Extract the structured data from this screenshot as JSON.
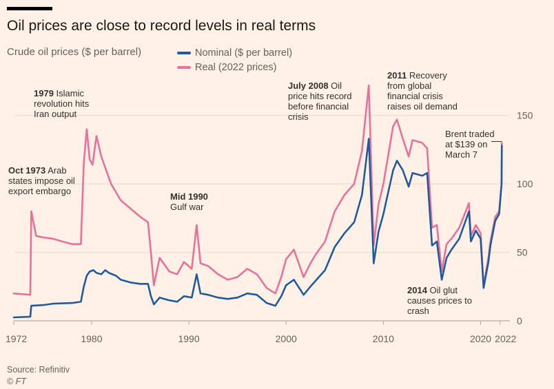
{
  "header": {
    "title": "Oil prices are close to record levels in real terms",
    "subtitle": "Crude oil prices ($ per barrel)"
  },
  "legend": {
    "nominal": "Nominal ($ per barrel)",
    "real": "Real (2022 prices)"
  },
  "annotations": {
    "a1973": [
      "Oct 1973 Arab",
      "states impose oil",
      "export embargo"
    ],
    "a1979": [
      "1979 Islamic",
      "revolution hits",
      "Iran output"
    ],
    "a1990": [
      "Mid 1990",
      "Gulf war"
    ],
    "a2008": [
      "July 2008 Oil",
      "price hits record",
      "before financial",
      "crisis"
    ],
    "a2011": [
      "2011 Recovery",
      "from global",
      "financial crisis",
      "raises oil demand"
    ],
    "a2014": [
      "2014 Oil glut",
      "causes prices to",
      "crash"
    ],
    "a2022": [
      "Brent traded",
      "at $139 on",
      "March 7"
    ]
  },
  "footer": {
    "source": "Source: Refinitiv",
    "credit": "© FT"
  },
  "colors": {
    "background": "#fff1e5",
    "nominal": "#1f5a9e",
    "real": "#e8719a",
    "grid": "#e6d9ce"
  },
  "chart_data": {
    "type": "line",
    "title": "Oil prices are close to record levels in real terms",
    "ylabel": "Crude oil prices ($ per barrel)",
    "xlim": [
      1972,
      2022.3
    ],
    "ylim": [
      0,
      150
    ],
    "x_ticks": [
      "1972",
      "1980",
      "1990",
      "2000",
      "2010",
      "2020",
      "2022"
    ],
    "y_ticks": [
      "0",
      "50",
      "100",
      "150"
    ],
    "grid": "horizontal",
    "legend_position": "top",
    "series": [
      {
        "name": "Nominal ($ per barrel)",
        "color": "#1f5a9e",
        "points": [
          [
            1972,
            2.5
          ],
          [
            1973.7,
            3
          ],
          [
            1973.8,
            11
          ],
          [
            1975,
            11.5
          ],
          [
            1976,
            12.5
          ],
          [
            1978,
            13
          ],
          [
            1978.9,
            14
          ],
          [
            1979.2,
            25
          ],
          [
            1979.5,
            33
          ],
          [
            1979.8,
            36
          ],
          [
            1980.2,
            37
          ],
          [
            1980.5,
            35
          ],
          [
            1981,
            34
          ],
          [
            1981.4,
            37
          ],
          [
            1981.8,
            35
          ],
          [
            1982.5,
            33
          ],
          [
            1983,
            30
          ],
          [
            1984,
            28
          ],
          [
            1985,
            27
          ],
          [
            1985.8,
            27
          ],
          [
            1986.1,
            18
          ],
          [
            1986.4,
            12
          ],
          [
            1987,
            17
          ],
          [
            1988,
            15
          ],
          [
            1988.8,
            14
          ],
          [
            1989.5,
            18
          ],
          [
            1990.3,
            17
          ],
          [
            1990.8,
            34
          ],
          [
            1991.2,
            20
          ],
          [
            1992,
            19
          ],
          [
            1993,
            17
          ],
          [
            1994,
            16
          ],
          [
            1995,
            17
          ],
          [
            1996,
            20
          ],
          [
            1997,
            19
          ],
          [
            1998,
            13
          ],
          [
            1998.9,
            11
          ],
          [
            1999.5,
            18
          ],
          [
            2000,
            26
          ],
          [
            2000.8,
            30
          ],
          [
            2001.8,
            19
          ],
          [
            2002.5,
            25
          ],
          [
            2003,
            29
          ],
          [
            2004,
            37
          ],
          [
            2005,
            54
          ],
          [
            2006,
            64
          ],
          [
            2007,
            72
          ],
          [
            2007.8,
            92
          ],
          [
            2008.5,
            133
          ],
          [
            2009,
            42
          ],
          [
            2009.5,
            65
          ],
          [
            2010,
            78
          ],
          [
            2011,
            110
          ],
          [
            2011.4,
            117
          ],
          [
            2012,
            110
          ],
          [
            2012.6,
            98
          ],
          [
            2013,
            108
          ],
          [
            2014,
            106
          ],
          [
            2014.5,
            108
          ],
          [
            2015,
            55
          ],
          [
            2015.5,
            58
          ],
          [
            2016,
            30
          ],
          [
            2016.5,
            46
          ],
          [
            2017,
            52
          ],
          [
            2017.8,
            60
          ],
          [
            2018.8,
            80
          ],
          [
            2019,
            58
          ],
          [
            2019.5,
            66
          ],
          [
            2020,
            60
          ],
          [
            2020.3,
            24
          ],
          [
            2020.8,
            43
          ],
          [
            2021,
            55
          ],
          [
            2021.5,
            73
          ],
          [
            2021.9,
            78
          ],
          [
            2022.15,
            100
          ],
          [
            2022.18,
            128
          ]
        ]
      },
      {
        "name": "Real (2022 prices)",
        "color": "#e8719a",
        "points": [
          [
            1972,
            20
          ],
          [
            1973.7,
            19
          ],
          [
            1973.8,
            80
          ],
          [
            1974.3,
            62
          ],
          [
            1975,
            61
          ],
          [
            1976,
            60
          ],
          [
            1977,
            58
          ],
          [
            1978,
            56
          ],
          [
            1978.9,
            56
          ],
          [
            1979.2,
            115
          ],
          [
            1979.5,
            140
          ],
          [
            1979.8,
            118
          ],
          [
            1980.1,
            114
          ],
          [
            1980.5,
            135
          ],
          [
            1981,
            120
          ],
          [
            1982,
            100
          ],
          [
            1983,
            88
          ],
          [
            1984,
            82
          ],
          [
            1985,
            76
          ],
          [
            1985.8,
            72
          ],
          [
            1986.1,
            50
          ],
          [
            1986.4,
            26
          ],
          [
            1987,
            46
          ],
          [
            1988,
            36
          ],
          [
            1988.8,
            34
          ],
          [
            1989.5,
            43
          ],
          [
            1990.3,
            38
          ],
          [
            1990.8,
            70
          ],
          [
            1991.2,
            42
          ],
          [
            1992,
            40
          ],
          [
            1993,
            34
          ],
          [
            1994,
            30
          ],
          [
            1995,
            32
          ],
          [
            1996,
            38
          ],
          [
            1997,
            34
          ],
          [
            1998,
            24
          ],
          [
            1998.9,
            20
          ],
          [
            1999.5,
            32
          ],
          [
            2000,
            45
          ],
          [
            2000.8,
            52
          ],
          [
            2001.8,
            32
          ],
          [
            2002.5,
            42
          ],
          [
            2003,
            48
          ],
          [
            2004,
            58
          ],
          [
            2005,
            80
          ],
          [
            2006,
            92
          ],
          [
            2007,
            100
          ],
          [
            2007.8,
            124
          ],
          [
            2008.5,
            172
          ],
          [
            2009,
            55
          ],
          [
            2009.5,
            85
          ],
          [
            2010,
            100
          ],
          [
            2011,
            142
          ],
          [
            2011.4,
            147
          ],
          [
            2012,
            133
          ],
          [
            2012.6,
            120
          ],
          [
            2013,
            132
          ],
          [
            2014,
            130
          ],
          [
            2014.5,
            126
          ],
          [
            2015,
            68
          ],
          [
            2015.5,
            70
          ],
          [
            2016,
            36
          ],
          [
            2016.5,
            56
          ],
          [
            2017,
            60
          ],
          [
            2017.8,
            68
          ],
          [
            2018.8,
            86
          ],
          [
            2019,
            62
          ],
          [
            2019.5,
            70
          ],
          [
            2020,
            64
          ],
          [
            2020.3,
            26
          ],
          [
            2020.8,
            46
          ],
          [
            2021,
            58
          ],
          [
            2021.5,
            76
          ],
          [
            2021.9,
            80
          ],
          [
            2022.15,
            100
          ],
          [
            2022.18,
            130
          ]
        ]
      }
    ]
  }
}
